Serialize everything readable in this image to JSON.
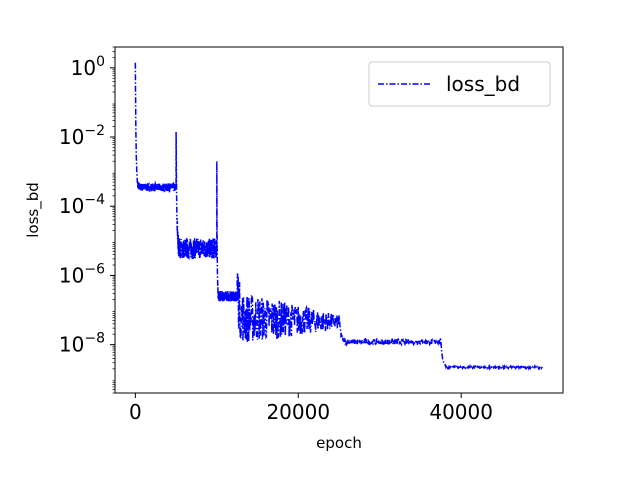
{
  "chart_data": {
    "type": "line",
    "title": "",
    "xlabel": "epoch",
    "ylabel": "loss_bd",
    "y_scale": "log",
    "xlim": [
      -2500,
      52500
    ],
    "ylim": [
      4e-10,
      4.0
    ],
    "x_ticks": [
      {
        "value": 0,
        "label": "0"
      },
      {
        "value": 20000,
        "label": "20000"
      },
      {
        "value": 40000,
        "label": "40000"
      }
    ],
    "y_ticks": [
      {
        "value": 1,
        "base": "10",
        "exp": "0"
      },
      {
        "value": 0.01,
        "base": "10",
        "exp": "−2"
      },
      {
        "value": 0.0001,
        "base": "10",
        "exp": "−4"
      },
      {
        "value": 1e-06,
        "base": "10",
        "exp": "−6"
      },
      {
        "value": 1e-08,
        "base": "10",
        "exp": "−8"
      }
    ],
    "grid": false,
    "legend": {
      "position": "top-right",
      "entries": [
        "loss_bd"
      ]
    },
    "series": [
      {
        "name": "loss_bd",
        "color": "#0000ff",
        "line_style": "dashdot",
        "segments": [
          {
            "x_start": 0,
            "x_end": 5000,
            "peak": 1.4,
            "level": 0.00035,
            "spread": 0.12
          },
          {
            "x_start": 5000,
            "x_end": 10000,
            "peak": 0.014,
            "level": 6e-06,
            "spread": 0.3
          },
          {
            "x_start": 10000,
            "x_end": 12500,
            "peak": 0.002,
            "level": 2.5e-07,
            "spread": 0.15
          },
          {
            "x_start": 12500,
            "x_end": 25000,
            "peak": 8e-07,
            "level": 6e-08,
            "level_end": 4.5e-08,
            "spread": 0.8
          },
          {
            "x_start": 25000,
            "x_end": 37500,
            "peak": 7e-08,
            "level": 1.2e-08,
            "spread": 0.08
          },
          {
            "x_start": 37500,
            "x_end": 50000,
            "peak": 1.3e-08,
            "level": 2.2e-09,
            "spread": 0.03
          }
        ]
      }
    ]
  }
}
